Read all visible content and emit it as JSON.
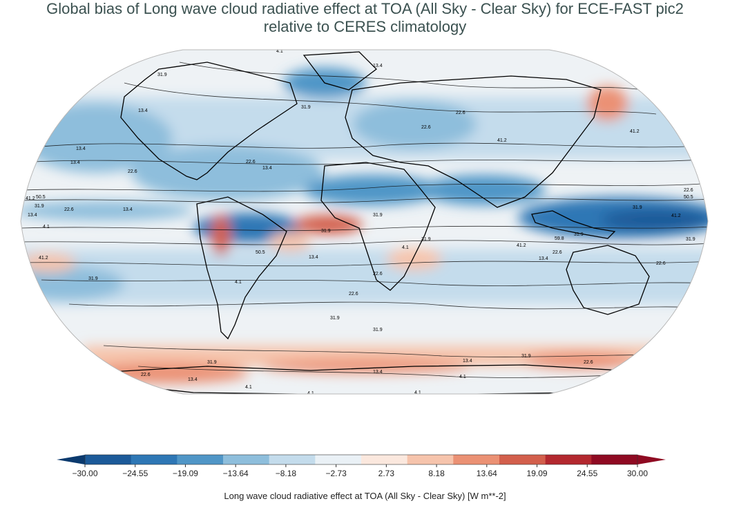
{
  "title": {
    "line1": "Global bias of Long wave cloud radiative effect at TOA (All Sky - Clear Sky) for ECE-FAST pic2",
    "line2": "relative to CERES climatology"
  },
  "colorbar": {
    "label": "Long wave cloud radiative effect at TOA (All Sky - Clear Sky) [W m**-2]",
    "ticks": [
      "−30.00",
      "−24.55",
      "−19.09",
      "−13.64",
      "−8.18",
      "−2.73",
      "2.73",
      "8.18",
      "13.64",
      "19.09",
      "24.55",
      "30.00"
    ],
    "colors": [
      "#1c5a99",
      "#2e77b5",
      "#5096c7",
      "#8ebedc",
      "#c4dcec",
      "#eaf1f6",
      "#fbe8de",
      "#f6c4ac",
      "#eb9174",
      "#d35f4c",
      "#b3282f",
      "#8f0a22"
    ],
    "extend_min_color": "#0b3a6e",
    "extend_max_color": "#8f0a22"
  },
  "map": {
    "projection": "Robinson",
    "ocean_color": "#eef2f5",
    "contour_labels": [
      "4.1",
      "13.4",
      "22.6",
      "31.9",
      "41.2",
      "50.5",
      "59.8"
    ],
    "placed_labels": [
      "4.1",
      "13.4",
      "31.9",
      "13.4",
      "31.9",
      "22.6",
      "13.4",
      "22.6",
      "41.2",
      "13.4",
      "22.6",
      "13.4",
      "22.6",
      "41.2",
      "50.5",
      "31.9",
      "22.6",
      "13.4",
      "4.1",
      "41.2",
      "22.6",
      "31.9",
      "31.9",
      "13.4",
      "4.1",
      "22.6",
      "31.9",
      "50.5",
      "4.1",
      "31.9",
      "41.2",
      "59.8",
      "31.9",
      "13.4",
      "22.6",
      "41.2",
      "31.9",
      "50.5",
      "22.6",
      "41.2",
      "31.9",
      "13.4",
      "22.6",
      "31.9",
      "31.9",
      "31.9",
      "13.4",
      "31.9",
      "22.6",
      "13.4",
      "4.1",
      "13.4",
      "4.1",
      "22.6",
      "4.1",
      "4.1"
    ]
  }
}
